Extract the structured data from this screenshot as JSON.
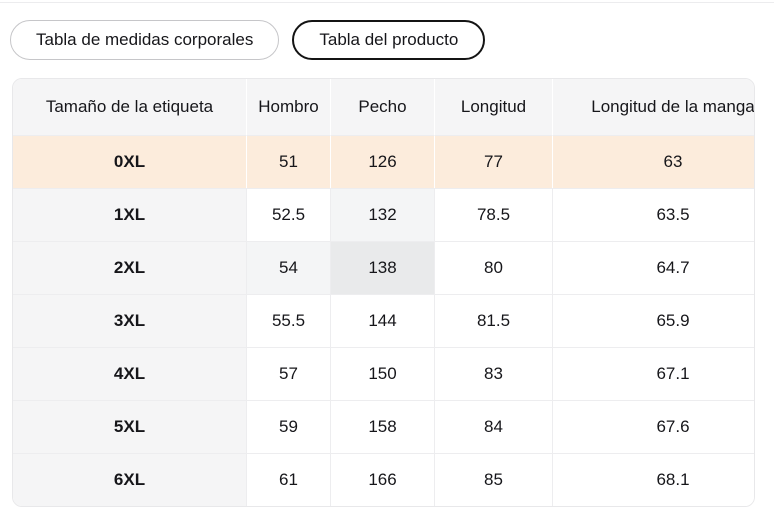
{
  "tabs": [
    {
      "label": "Tabla de medidas corporales",
      "selected": false
    },
    {
      "label": "Tabla del producto",
      "selected": true
    }
  ],
  "table": {
    "columns": [
      "Tamaño de la etiqueta",
      "Hombro",
      "Pecho",
      "Longitud",
      "Longitud de la manga"
    ],
    "rows": [
      {
        "size": "0XL",
        "values": [
          "51",
          "126",
          "77",
          "63"
        ]
      },
      {
        "size": "1XL",
        "values": [
          "52.5",
          "132",
          "78.5",
          "63.5"
        ]
      },
      {
        "size": "2XL",
        "values": [
          "54",
          "138",
          "80",
          "64.7"
        ]
      },
      {
        "size": "3XL",
        "values": [
          "55.5",
          "144",
          "81.5",
          "65.9"
        ]
      },
      {
        "size": "4XL",
        "values": [
          "57",
          "150",
          "83",
          "67.1"
        ]
      },
      {
        "size": "5XL",
        "values": [
          "59",
          "158",
          "84",
          "67.6"
        ]
      },
      {
        "size": "6XL",
        "values": [
          "61",
          "166",
          "85",
          "68.1"
        ]
      }
    ],
    "selected_row": "0XL",
    "cell_highlights": [
      {
        "row": "1XL",
        "column": "Pecho",
        "shade": "light"
      },
      {
        "row": "2XL",
        "column": "Hombro",
        "shade": "light"
      },
      {
        "row": "2XL",
        "column": "Pecho",
        "shade": "dark"
      }
    ],
    "colors": {
      "selected_row_bg": "#fcecdc",
      "header_bg": "#f5f5f6",
      "label_col_bg": "#f5f5f6",
      "highlight_light": "#f4f5f6",
      "highlight_dark": "#e9eaeb"
    }
  }
}
